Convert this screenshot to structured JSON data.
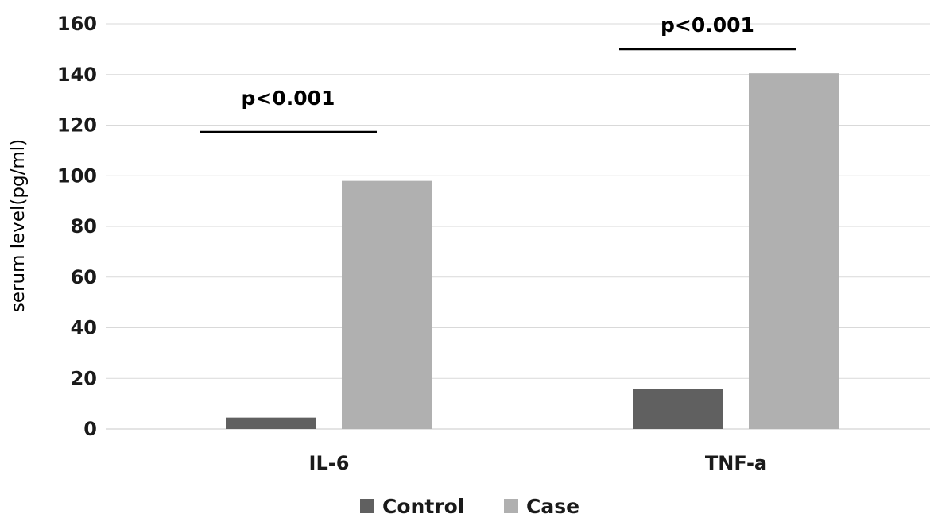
{
  "chart_data": {
    "type": "bar",
    "categories": [
      "IL-6",
      "TNF-a"
    ],
    "series": [
      {
        "name": "Control",
        "values": [
          4.5,
          16
        ],
        "color": "#606060"
      },
      {
        "name": "Case",
        "values": [
          98,
          140.5
        ],
        "color": "#b0b0b0"
      }
    ],
    "title": "",
    "xlabel": "",
    "ylabel": "serum level(pg/ml)",
    "ylim": [
      0,
      160
    ],
    "yticks": [
      0,
      20,
      40,
      60,
      80,
      100,
      120,
      140,
      160
    ],
    "grid": true,
    "legend_position": "bottom",
    "annotations": [
      {
        "category": "IL-6",
        "text": "p<0.001"
      },
      {
        "category": "TNF-a",
        "text": "p<0.001"
      }
    ]
  }
}
